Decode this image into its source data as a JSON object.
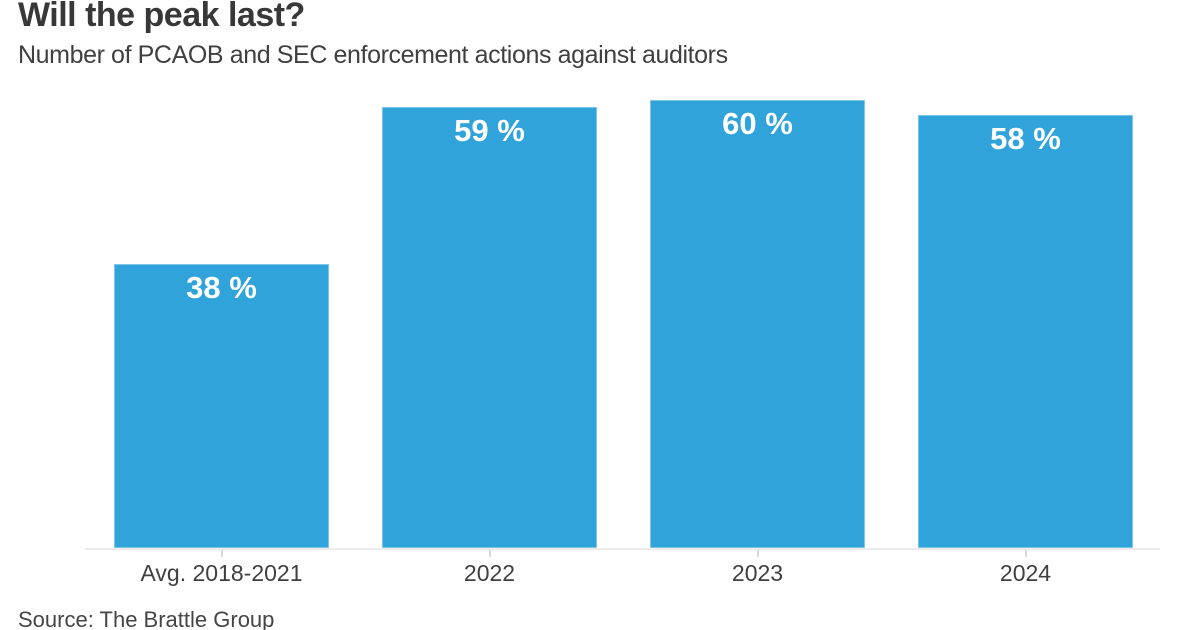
{
  "header": {
    "title": "Will the peak last?",
    "subtitle": "Number of PCAOB and SEC enforcement actions against auditors"
  },
  "footer": {
    "source": "Source: The Brattle Group"
  },
  "colors": {
    "bar": "#30A4DA",
    "bar_label": "#ffffff",
    "axis_line": "#ebebeb",
    "tick": "#d9d9d9",
    "title_text": "#383838",
    "axis_text": "#404040"
  },
  "chart_data": {
    "type": "bar",
    "title": "Will the peak last?",
    "subtitle": "Number of PCAOB and SEC enforcement actions against auditors",
    "categories": [
      "Avg. 2018-2021",
      "2022",
      "2023",
      "2024"
    ],
    "values": [
      38,
      59,
      60,
      58
    ],
    "value_labels": [
      "38 %",
      "59 %",
      "60 %",
      "58 %"
    ],
    "value_label_position": "inside-top",
    "bar_color": "#30A4DA",
    "xlabel": "",
    "ylabel": "",
    "ylim": [
      0,
      62
    ],
    "grid": false,
    "legend": "none",
    "source": "Source: The Brattle Group"
  }
}
